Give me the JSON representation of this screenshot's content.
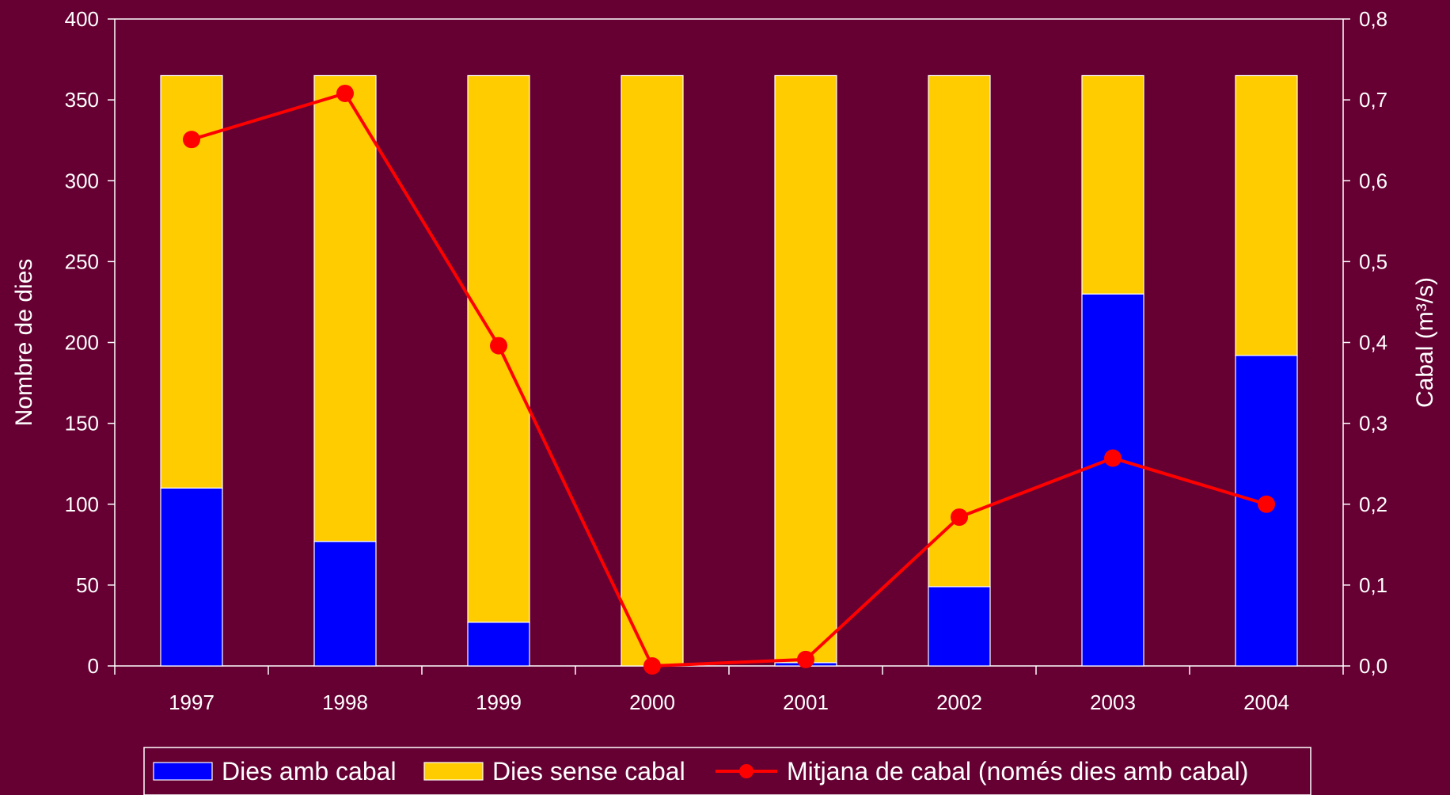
{
  "chart_data": {
    "type": "bar",
    "stacked": true,
    "categories": [
      "1997",
      "1998",
      "1999",
      "2000",
      "2001",
      "2002",
      "2003",
      "2004"
    ],
    "series": [
      {
        "name": "Dies amb cabal",
        "type": "bar",
        "axis": "left",
        "color": "#0000ff",
        "values": [
          110,
          77,
          27,
          0,
          2,
          49,
          230,
          192
        ]
      },
      {
        "name": "Dies sense cabal",
        "type": "bar",
        "axis": "left",
        "color": "#ffcc00",
        "values": [
          255,
          288,
          338,
          365,
          363,
          316,
          135,
          173
        ]
      },
      {
        "name": "Mitjana de cabal (només dies amb cabal)",
        "type": "line",
        "axis": "right",
        "color": "#ff0000",
        "values": [
          0.651,
          0.708,
          0.396,
          0.0,
          0.008,
          0.184,
          0.257,
          0.2
        ]
      }
    ],
    "ylabel": "Nombre de dies",
    "ylabel_right": "Cabal (m³/s)",
    "ylim": [
      0,
      400
    ],
    "ylim_right": [
      0,
      0.8
    ],
    "yticks": [
      "0",
      "50",
      "100",
      "150",
      "200",
      "250",
      "300",
      "350",
      "400"
    ],
    "yticks_right": [
      "0,0",
      "0,1",
      "0,2",
      "0,3",
      "0,4",
      "0,5",
      "0,6",
      "0,7",
      "0,8"
    ],
    "grid": false,
    "legend": "bottom",
    "background": "#660033"
  }
}
